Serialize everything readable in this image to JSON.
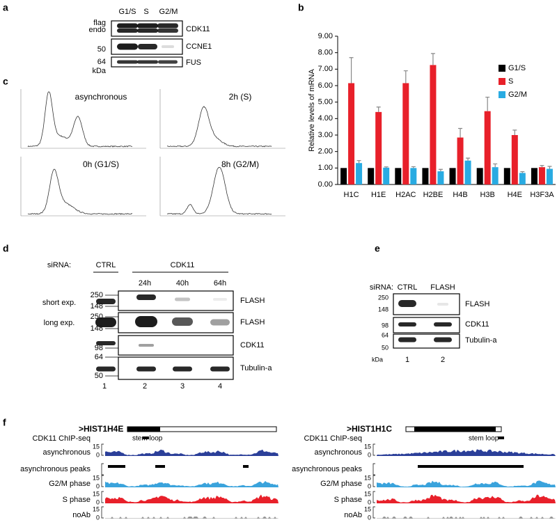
{
  "panels": {
    "a": {
      "label": "a",
      "lanes": [
        "G1/S",
        "S",
        "G2/M"
      ],
      "left_labels": [
        "flag",
        "endo",
        "50",
        "64",
        "kDa"
      ],
      "blots": [
        "CDK11",
        "CCNE1",
        "FUS"
      ]
    },
    "b": {
      "label": "b"
    },
    "c": {
      "label": "c",
      "plots": [
        "asynchronous",
        "2h (S)",
        "0h (G1/S)",
        "8h (G2/M)"
      ]
    },
    "d": {
      "label": "d",
      "sirna": "siRNA:",
      "groups": [
        "CTRL",
        "CDK11"
      ],
      "times": [
        "24h",
        "40h",
        "64h"
      ],
      "exposures": [
        "short exp.",
        "long exp."
      ],
      "markers": [
        "250",
        "148",
        "250",
        "148",
        "98",
        "64",
        "50"
      ],
      "blots": [
        "FLASH",
        "FLASH",
        "CDK11",
        "Tubulin-a"
      ],
      "lanes": [
        "1",
        "2",
        "3",
        "4"
      ]
    },
    "e": {
      "label": "e",
      "sirna": "siRNA:",
      "groups": [
        "CTRL",
        "FLASH"
      ],
      "markers": [
        "250",
        "148",
        "98",
        "64",
        "50"
      ],
      "unit": "kDa",
      "blots": [
        "FLASH",
        "CDK11",
        "Tubulin-a"
      ],
      "lanes": [
        "1",
        "2"
      ]
    },
    "f": {
      "label": "f",
      "loci": [
        {
          "gene": ">HIST1H4E",
          "feature": "stem loop"
        },
        {
          "gene": ">HIST1H1C",
          "feature": "stem loop"
        }
      ],
      "tracks": [
        "CDK11 ChIP-seq",
        "asynchronous",
        "asynchronous peaks",
        "G2/M phase",
        "S phase",
        "noAb"
      ],
      "scale": [
        "15",
        "0"
      ]
    }
  },
  "chart_data": {
    "type": "bar",
    "y_label": "Relative levels of mRNA",
    "categories": [
      "H1C",
      "H1E",
      "H2AC",
      "H2BE",
      "H4B",
      "H3B",
      "H4E",
      "H3F3A"
    ],
    "series": [
      {
        "name": "G1/S",
        "color": "#000000",
        "values": [
          1.0,
          1.0,
          1.0,
          1.0,
          1.0,
          1.0,
          1.0,
          1.0
        ]
      },
      {
        "name": "S",
        "color": "#e8202a",
        "values": [
          6.15,
          4.4,
          6.15,
          7.25,
          2.85,
          4.45,
          3.0,
          1.05
        ],
        "errors": [
          1.55,
          0.3,
          0.75,
          0.7,
          0.55,
          0.85,
          0.3,
          0.1
        ]
      },
      {
        "name": "G2/M",
        "color": "#29abe2",
        "values": [
          1.3,
          1.02,
          1.0,
          0.8,
          1.45,
          1.05,
          0.7,
          0.95
        ],
        "errors": [
          0.15,
          0.05,
          0.08,
          0.12,
          0.15,
          0.2,
          0.08,
          0.15
        ]
      }
    ],
    "ylim": [
      0,
      9
    ],
    "yticks": [
      {
        "value": 0,
        "label": "0.00"
      },
      {
        "value": 1,
        "label": "1.00"
      },
      {
        "value": 2,
        "label": "2.00"
      },
      {
        "value": 3,
        "label": "3.00"
      },
      {
        "value": 4,
        "label": "4.00"
      },
      {
        "value": 5,
        "label": "5.00"
      },
      {
        "value": 6,
        "label": "6.00"
      },
      {
        "value": 7,
        "label": "7.00"
      },
      {
        "value": 8,
        "label": "8.00"
      },
      {
        "value": 9,
        "label": "9.00"
      }
    ],
    "legend": "upper right"
  }
}
